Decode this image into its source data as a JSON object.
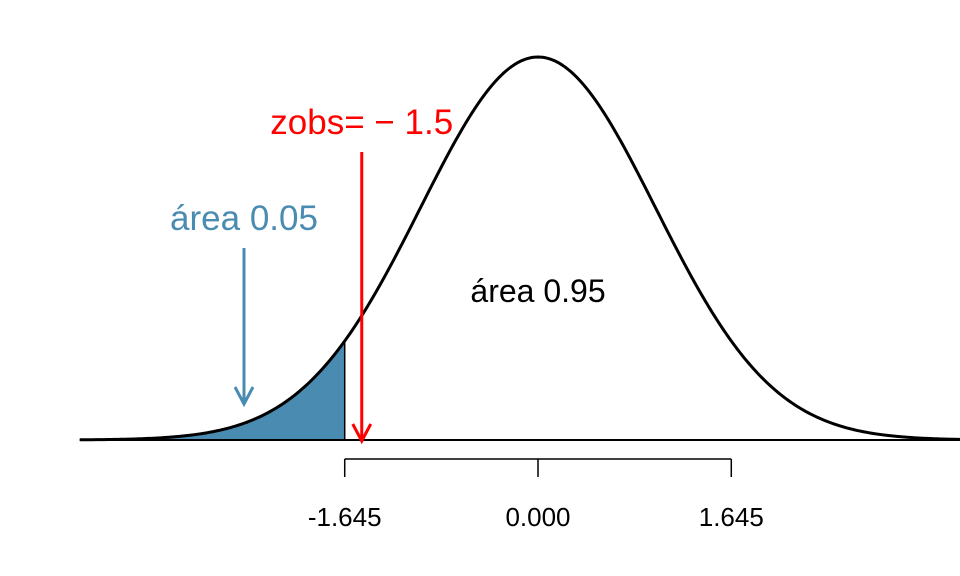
{
  "chart_data": {
    "type": "area",
    "distribution": "standard-normal",
    "xlim": [
      -3.9,
      3.9
    ],
    "ticks": [
      {
        "value": -1.645,
        "label": "-1.645"
      },
      {
        "value": 0,
        "label": "0.000"
      },
      {
        "value": 1.645,
        "label": "1.645"
      }
    ],
    "shaded_region": {
      "from": -3.9,
      "to": -1.645,
      "color": "#4A8BB1"
    },
    "observed": {
      "value": -1.5,
      "label": "zobs= − 1.5",
      "color": "#FF0000"
    },
    "annotations": {
      "tail_area": {
        "text": "área 0.05",
        "color": "#4A8BB1"
      },
      "center_area": {
        "text": "área 0.95",
        "color": "#000000"
      }
    },
    "curve_color": "#000000"
  }
}
